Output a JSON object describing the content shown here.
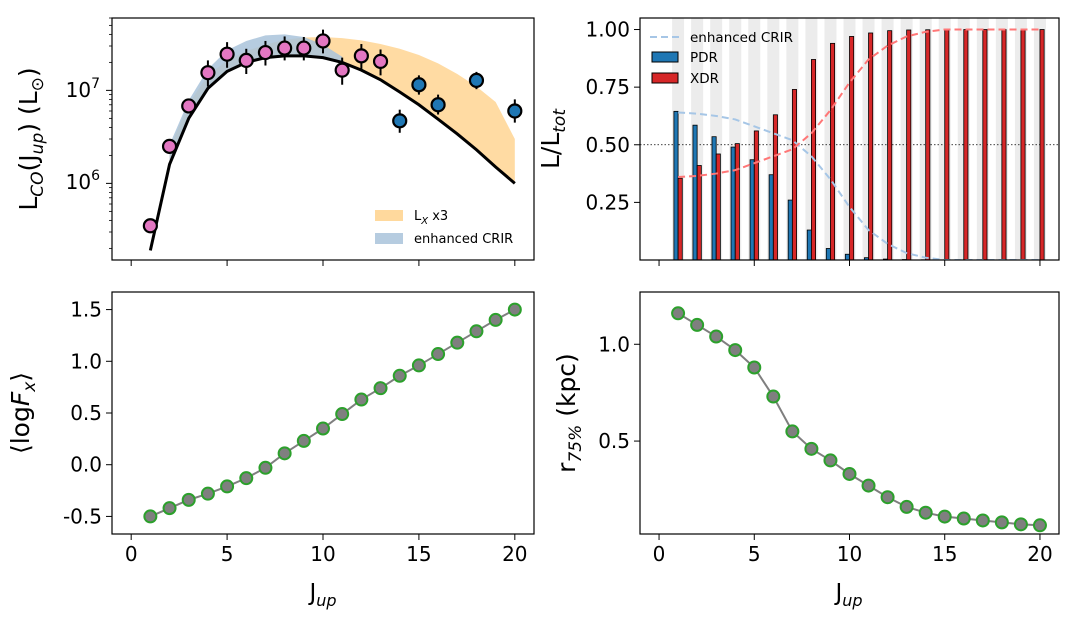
{
  "colors": {
    "pink": "#e377c2",
    "blue": "#1f77b4",
    "red": "#d62728",
    "orange_band": "#ffd28c",
    "blue_band": "#a9c3da",
    "green_marker": "#2ca02c",
    "gray_line": "#7f7f7f",
    "crir_line": "#a6c6e6",
    "xdr_line": "#ff7777",
    "stripe": "#ececec"
  },
  "chart_data": [
    {
      "id": "co_sled",
      "type": "scatter",
      "yscale": "log",
      "xlabel": "",
      "ylabel_parts": [
        "L",
        "CO",
        "(J",
        "up",
        ") (L",
        "⊙",
        ")"
      ],
      "xlim": [
        -1,
        21
      ],
      "ylim": [
        150000,
        60000000
      ],
      "xticks": [
        0,
        5,
        10,
        15,
        20
      ],
      "yticks": [
        {
          "value": 1000000,
          "base": "10",
          "exp": "6"
        },
        {
          "value": 10000000,
          "base": "10",
          "exp": "7"
        }
      ],
      "model_curve": {
        "x": [
          1,
          2,
          3,
          4,
          5,
          6,
          7,
          8,
          9,
          10,
          11,
          12,
          13,
          14,
          15,
          16,
          17,
          18,
          19,
          20
        ],
        "y": [
          190000,
          1600000,
          5000000,
          10500000,
          16000000,
          20000000,
          22500000,
          23500000,
          23500000,
          22500000,
          20000000,
          16500000,
          13000000,
          9600000,
          7000000,
          4900000,
          3400000,
          2300000,
          1500000,
          1000000
        ]
      },
      "band_lx3": {
        "name": "L_X x3",
        "label_main": "L",
        "label_sub": "X",
        "label_rest": " x3",
        "x": [
          2,
          3,
          4,
          5,
          6,
          7,
          8,
          9,
          10,
          11,
          12,
          13,
          14,
          15,
          16,
          17,
          18,
          19,
          20
        ],
        "low": [
          1600000,
          5000000,
          10500000,
          16000000,
          20000000,
          22500000,
          23500000,
          23500000,
          22500000,
          20000000,
          16500000,
          13000000,
          9600000,
          7000000,
          4900000,
          3400000,
          2300000,
          1500000,
          1000000
        ],
        "high": [
          2400000,
          7200000,
          14500000,
          21000000,
          26500000,
          31000000,
          35000000,
          37000000,
          37500000,
          36500000,
          34500000,
          31500000,
          28000000,
          24000000,
          19500000,
          15000000,
          11000000,
          7500000,
          3000000
        ]
      },
      "band_crir": {
        "name": "enhanced CRIR",
        "x": [
          2,
          3,
          4,
          5,
          6,
          7,
          8,
          9,
          10,
          11
        ],
        "low": [
          1600000,
          5000000,
          10500000,
          16000000,
          20000000,
          22500000,
          23500000,
          23500000,
          22500000,
          20000000
        ],
        "high": [
          2600000,
          7800000,
          17000000,
          27000000,
          34000000,
          39000000,
          40000000,
          37500000,
          31000000,
          23000000
        ]
      },
      "points_pink": {
        "x": [
          1,
          2,
          3,
          4,
          5,
          6,
          7,
          8,
          9,
          10,
          11,
          12,
          13
        ],
        "y": [
          350000,
          2500000,
          6800000,
          15500000,
          24500000,
          21000000,
          25500000,
          28500000,
          28500000,
          34000000,
          16500000,
          23500000,
          20500000
        ],
        "err_low": [
          0,
          0,
          0,
          4500000,
          7000000,
          6000000,
          7000000,
          7500000,
          7500000,
          9000000,
          5000000,
          6500000,
          6000000
        ],
        "err_high": [
          0,
          0,
          0,
          5500000,
          8500000,
          7000000,
          8500000,
          9500000,
          9000000,
          11000000,
          6000000,
          8000000,
          7000000
        ]
      },
      "points_blue": {
        "x": [
          14,
          15,
          16,
          18,
          20
        ],
        "y": [
          4700000,
          11500000,
          7000000,
          12800000,
          6000000
        ],
        "err_low": [
          1200000,
          2500000,
          1500000,
          2500000,
          1500000
        ],
        "err_high": [
          1500000,
          3000000,
          2000000,
          3000000,
          2000000
        ]
      },
      "legend_position": "lower right"
    },
    {
      "id": "fractions",
      "type": "bar",
      "xlim": [
        -1,
        21
      ],
      "ylim": [
        0.0,
        1.05
      ],
      "xticks": [
        0,
        5,
        10,
        15,
        20
      ],
      "yticks": [
        "0.25",
        "0.50",
        "0.75",
        "1.00"
      ],
      "ylabel_parts": [
        "L/L",
        "tot"
      ],
      "categories": [
        1,
        2,
        3,
        4,
        5,
        6,
        7,
        8,
        9,
        10,
        11,
        12,
        13,
        14,
        15,
        16,
        17,
        18,
        19,
        20
      ],
      "series": [
        {
          "name": "PDR",
          "values": [
            0.645,
            0.585,
            0.535,
            0.49,
            0.435,
            0.37,
            0.26,
            0.13,
            0.05,
            0.025,
            0.01,
            0.004,
            0.002,
            0.001,
            0.0,
            0.0,
            0.0,
            0.0,
            0.0,
            0.0
          ]
        },
        {
          "name": "XDR",
          "values": [
            0.355,
            0.41,
            0.46,
            0.505,
            0.56,
            0.63,
            0.74,
            0.87,
            0.94,
            0.97,
            0.985,
            0.995,
            0.998,
            0.999,
            1.0,
            1.0,
            1.0,
            1.0,
            1.0,
            1.0
          ]
        }
      ],
      "crir_curve": {
        "name": "enhanced CRIR",
        "x": [
          1,
          2,
          3,
          4,
          5,
          6,
          7,
          8,
          9,
          10,
          11,
          12,
          13,
          14,
          15,
          16,
          17,
          18,
          19,
          20
        ],
        "y": [
          0.64,
          0.635,
          0.625,
          0.61,
          0.58,
          0.55,
          0.52,
          0.45,
          0.35,
          0.23,
          0.13,
          0.07,
          0.03,
          0.01,
          0.0,
          0.0,
          0.0,
          0.0,
          0.0,
          0.0
        ]
      },
      "xdr_curve": {
        "x": [
          1,
          2,
          3,
          4,
          5,
          6,
          7,
          8,
          9,
          10,
          11,
          12,
          13,
          14,
          15,
          16,
          17,
          18,
          19,
          20
        ],
        "y": [
          0.36,
          0.365,
          0.375,
          0.39,
          0.42,
          0.45,
          0.48,
          0.55,
          0.65,
          0.77,
          0.87,
          0.93,
          0.97,
          0.99,
          1.0,
          1.0,
          1.0,
          1.0,
          1.0,
          1.0
        ]
      },
      "hline": 0.5,
      "legend_position": "upper left"
    },
    {
      "id": "logfx",
      "type": "line",
      "xlim": [
        -1,
        21
      ],
      "ylim": [
        -0.67,
        1.67
      ],
      "xticks": [
        0,
        5,
        10,
        15,
        20
      ],
      "yticks": [
        "-0.5",
        "0.0",
        "0.5",
        "1.0",
        "1.5"
      ],
      "xlabel_parts": [
        "J",
        "up"
      ],
      "ylabel_parts": [
        "⟨log",
        "F",
        "x",
        "⟩"
      ],
      "x": [
        1,
        2,
        3,
        4,
        5,
        6,
        7,
        8,
        9,
        10,
        11,
        12,
        13,
        14,
        15,
        16,
        17,
        18,
        19,
        20
      ],
      "y": [
        -0.5,
        -0.42,
        -0.34,
        -0.28,
        -0.21,
        -0.13,
        -0.03,
        0.11,
        0.23,
        0.35,
        0.49,
        0.63,
        0.74,
        0.86,
        0.96,
        1.07,
        1.18,
        1.29,
        1.4,
        1.5
      ]
    },
    {
      "id": "r75",
      "type": "line",
      "xlim": [
        -1,
        21
      ],
      "ylim": [
        0.02,
        1.27
      ],
      "xticks": [
        0,
        5,
        10,
        15,
        20
      ],
      "yticks": [
        "0.5",
        "1.0"
      ],
      "xlabel_parts": [
        "J",
        "up"
      ],
      "ylabel_parts": [
        "r",
        "75%",
        " (kpc)"
      ],
      "x": [
        1,
        2,
        3,
        4,
        5,
        6,
        7,
        8,
        9,
        10,
        11,
        12,
        13,
        14,
        15,
        16,
        17,
        18,
        19,
        20
      ],
      "y": [
        1.16,
        1.1,
        1.04,
        0.97,
        0.88,
        0.73,
        0.55,
        0.46,
        0.4,
        0.33,
        0.27,
        0.21,
        0.16,
        0.13,
        0.11,
        0.1,
        0.09,
        0.08,
        0.07,
        0.065
      ]
    }
  ]
}
